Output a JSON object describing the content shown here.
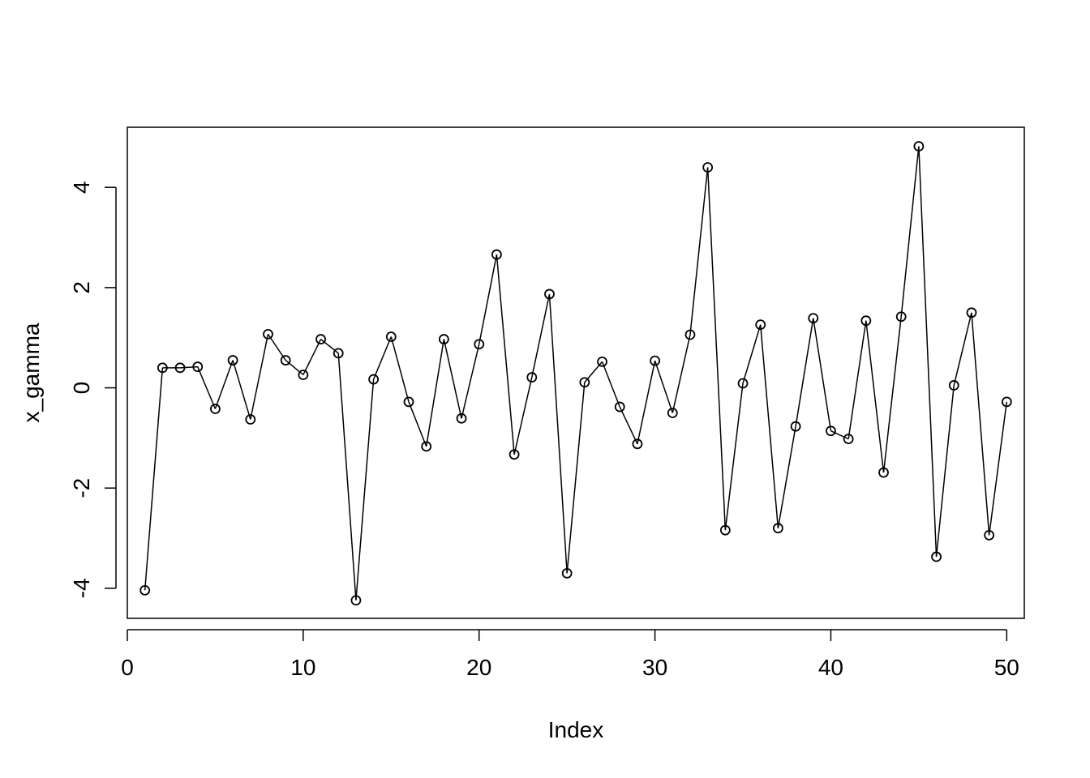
{
  "chart_data": {
    "type": "line",
    "markers": "open-circle",
    "xlabel": "Index",
    "ylabel": "x_gamma",
    "xlim": [
      0,
      51
    ],
    "ylim": [
      -4.6,
      5.2
    ],
    "xticks": [
      0,
      10,
      20,
      30,
      40,
      50
    ],
    "yticks": [
      -4,
      -2,
      0,
      2,
      4
    ],
    "xtick_labels": [
      "0",
      "10",
      "20",
      "30",
      "40",
      "50"
    ],
    "ytick_labels": [
      "-4",
      "-2",
      "0",
      "2",
      "4"
    ],
    "grid": false,
    "series": [
      {
        "x": [
          1,
          2,
          3,
          4,
          5,
          6,
          7,
          8,
          9,
          10,
          11,
          12,
          13,
          14,
          15,
          16,
          17,
          18,
          19,
          20,
          21,
          22,
          23,
          24,
          25,
          26,
          27,
          28,
          29,
          30,
          31,
          32,
          33,
          34,
          35,
          36,
          37,
          38,
          39,
          40,
          41,
          42,
          43,
          44,
          45,
          46,
          47,
          48,
          49,
          50
        ],
        "y": [
          -4.04,
          0.4,
          0.4,
          0.42,
          -0.42,
          0.55,
          -0.63,
          1.07,
          0.55,
          0.26,
          0.97,
          0.69,
          -4.24,
          0.17,
          1.02,
          -0.28,
          -1.17,
          0.97,
          -0.61,
          0.87,
          2.66,
          -1.33,
          0.21,
          1.87,
          -3.7,
          0.11,
          0.52,
          -0.38,
          -1.12,
          0.54,
          -0.5,
          1.06,
          4.4,
          -2.84,
          0.09,
          1.26,
          -2.8,
          -0.77,
          1.39,
          -0.86,
          -1.02,
          1.34,
          -1.69,
          1.42,
          4.82,
          -3.37,
          0.05,
          1.5,
          -2.94,
          -0.28
        ]
      }
    ],
    "colors": {
      "line": "#000000",
      "marker": "#000000",
      "background": "#ffffff"
    }
  }
}
